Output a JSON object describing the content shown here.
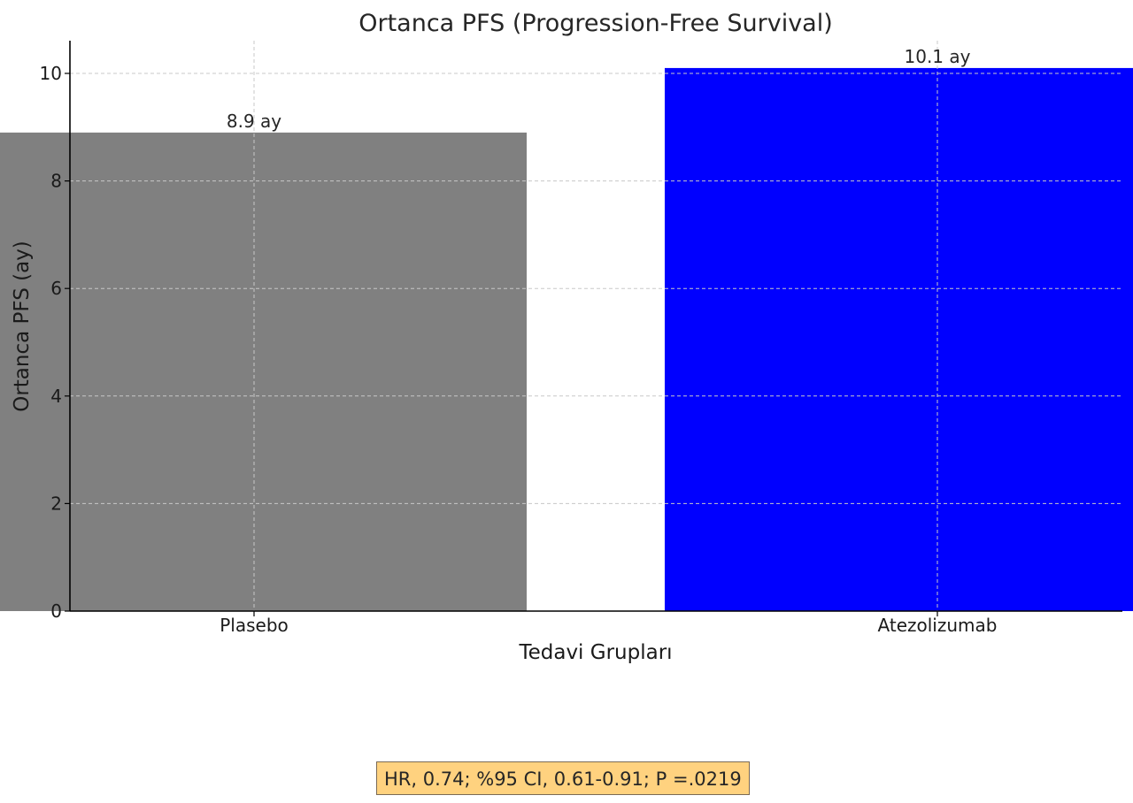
{
  "chart_data": {
    "type": "bar",
    "title": "Ortanca PFS (Progression-Free Survival)",
    "xlabel": "Tedavi Grupları",
    "ylabel": "Ortanca PFS (ay)",
    "categories": [
      "Plasebo",
      "Atezolizumab"
    ],
    "values": [
      8.9,
      10.1
    ],
    "data_labels": [
      "8.9 ay",
      "10.1 ay"
    ],
    "colors": [
      "#808080",
      "#0000ff"
    ],
    "ylim": [
      0,
      10.6
    ],
    "yticks": [
      0,
      2,
      4,
      6,
      8,
      10
    ],
    "grid": true,
    "annotation": {
      "text": "HR, 0.74; %95 CI, 0.61-0.91; P =.0219",
      "background": "#ffd27f"
    }
  }
}
